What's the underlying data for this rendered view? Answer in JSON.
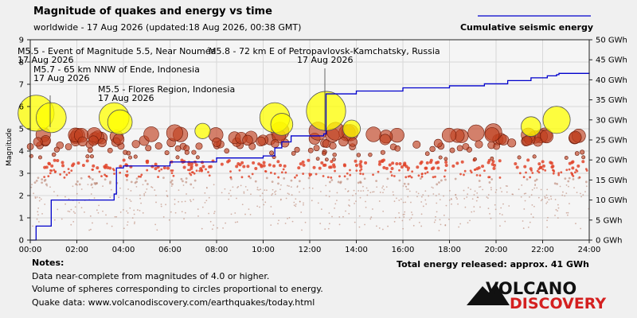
{
  "chart_data": {
    "type": "scatter",
    "title": "Magnitude of quakes and energy vs time",
    "subtitle": "worldwide - 17 Aug 2026 (updated:18 Aug 2026, 00:38 GMT)",
    "legend_label": "Cumulative seismic energy",
    "legend_placement": "top-right",
    "ylabel_left": "Magnitude",
    "x_ticks": [
      "00:00",
      "02:00",
      "04:00",
      "06:00",
      "08:00",
      "10:00",
      "12:00",
      "14:00",
      "16:00",
      "18:00",
      "20:00",
      "22:00",
      "24:00"
    ],
    "xlim_hours": [
      0,
      24
    ],
    "ylim_magnitude": [
      0,
      9
    ],
    "y_ticks_left": [
      "0",
      "1",
      "2",
      "3",
      "4",
      "5",
      "6",
      "7",
      "8",
      "9"
    ],
    "ylim_energy_gwh": [
      0,
      50
    ],
    "y_ticks_right": [
      "0 GWh",
      "5 GWh",
      "10 GWh",
      "15 GWh",
      "20 GWh",
      "25 GWh",
      "30 GWh",
      "35 GWh",
      "40 GWh",
      "45 GWh",
      "50 GWh"
    ],
    "grid": true,
    "annotations": [
      {
        "label": "M5.5 - Event of Magnitude 5.5, Near Nouméa",
        "date": "17 Aug 2026",
        "time_h": 0.9,
        "magnitude": 5.5
      },
      {
        "label": "M5.7 - 65 km NNW of Ende, Indonesia",
        "date": "17 Aug 2026",
        "time_h": 0.25,
        "magnitude": 5.7
      },
      {
        "label": "M5.8 - 72 km E of Petropavlovsk-Kamchatsky, Russia",
        "date": "17 Aug 2026",
        "time_h": 12.7,
        "magnitude": 5.8
      },
      {
        "label": "M5.5 - Flores Region, Indonesia",
        "date": "17 Aug 2026",
        "time_h": 3.7,
        "magnitude": 5.5
      }
    ],
    "major_quakes": [
      {
        "time_h": 0.25,
        "magnitude": 5.7
      },
      {
        "time_h": 0.9,
        "magnitude": 5.5
      },
      {
        "time_h": 3.6,
        "magnitude": 5.5
      },
      {
        "time_h": 3.85,
        "magnitude": 5.3
      },
      {
        "time_h": 10.5,
        "magnitude": 5.5
      },
      {
        "time_h": 12.7,
        "magnitude": 5.8
      },
      {
        "time_h": 13.8,
        "magnitude": 5.0
      },
      {
        "time_h": 7.4,
        "magnitude": 4.9
      },
      {
        "time_h": 21.5,
        "magnitude": 5.1
      },
      {
        "time_h": 22.6,
        "magnitude": 5.4
      },
      {
        "time_h": 10.8,
        "magnitude": 5.2
      }
    ],
    "cumulative_energy_gwh": [
      [
        0,
        0
      ],
      [
        0.25,
        3.5
      ],
      [
        0.9,
        10
      ],
      [
        3.6,
        11.5
      ],
      [
        3.7,
        18
      ],
      [
        4.0,
        18.5
      ],
      [
        6.0,
        19.5
      ],
      [
        8.0,
        20.5
      ],
      [
        10.0,
        21
      ],
      [
        10.5,
        23
      ],
      [
        10.8,
        24.5
      ],
      [
        11.2,
        26
      ],
      [
        12.6,
        26.5
      ],
      [
        12.7,
        36.5
      ],
      [
        14.0,
        37.2
      ],
      [
        16.0,
        38
      ],
      [
        18.0,
        38.5
      ],
      [
        19.5,
        39
      ],
      [
        20.5,
        39.8
      ],
      [
        21.5,
        40.5
      ],
      [
        22.2,
        41
      ],
      [
        22.6,
        41.3
      ],
      [
        22.7,
        41.6
      ],
      [
        24,
        41.8
      ]
    ],
    "total_energy_label": "Total energy released: approx. 41 GWh"
  },
  "notes": {
    "heading": "Notes:",
    "lines": [
      "Data near-complete from magnitudes of 4.0 or higher.",
      "Volume of spheres corresponding to circles proportional to energy.",
      "Quake data: www.volcanodiscovery.com/earthquakes/today.html"
    ]
  },
  "logo": {
    "line1": "VOLCANO",
    "line2": "DISCOVERY"
  },
  "colors": {
    "background": "#f0f0f0",
    "energy_line": "#0000cc",
    "big_quake_fill": "#ffff00",
    "mid_quake_fill": "#c04020",
    "small_quake_fill": "#ff5533",
    "logo_red": "#d42020"
  }
}
